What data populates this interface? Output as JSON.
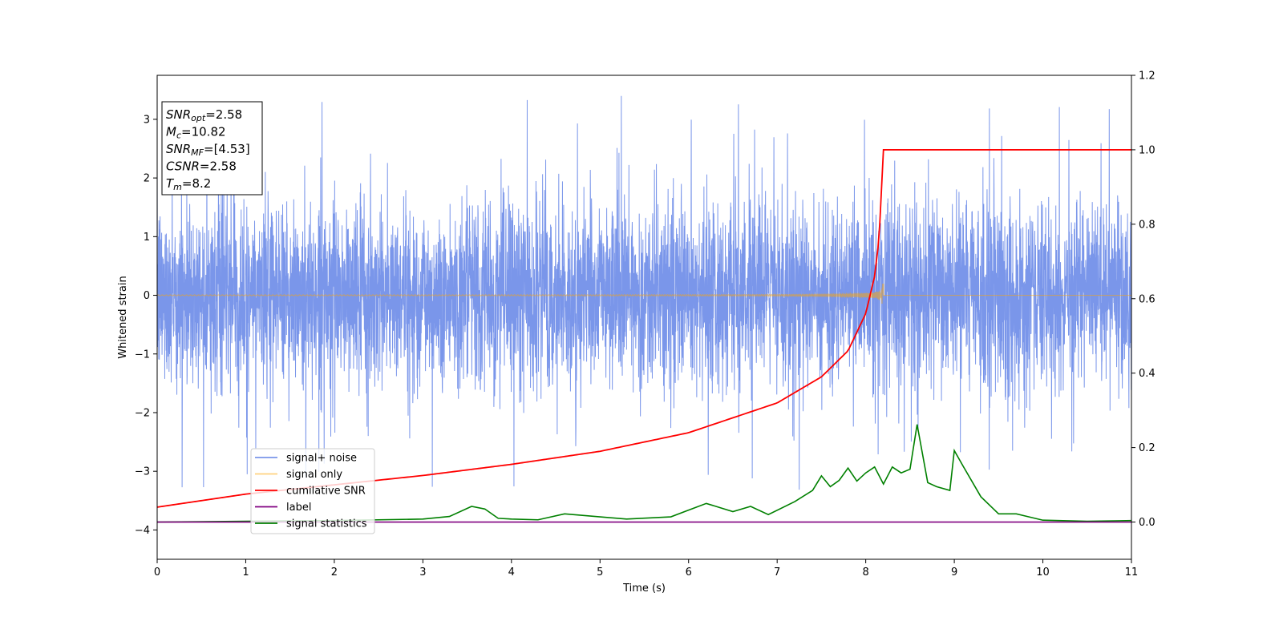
{
  "chart_data": {
    "type": "line",
    "xlabel": "Time (s)",
    "ylabel": "Whitened strain",
    "xlim": [
      0,
      11
    ],
    "ylim_left": [
      -4.5,
      3.75
    ],
    "ylim_right": [
      -0.1,
      1.2
    ],
    "x_ticks": [
      "0",
      "1",
      "2",
      "3",
      "4",
      "5",
      "6",
      "7",
      "8",
      "9",
      "10",
      "11"
    ],
    "y_ticks_left": [
      "−4",
      "−3",
      "−2",
      "−1",
      "0",
      "1",
      "2",
      "3"
    ],
    "y_ticks_right": [
      "0.0",
      "0.2",
      "0.4",
      "0.6",
      "0.8",
      "1.0",
      "1.2"
    ],
    "grid": false,
    "legend_position": "lower-left",
    "info_box": {
      "snr_opt": {
        "name": "SNR",
        "sub": "opt",
        "value": "=2.58"
      },
      "mc": {
        "name": "M",
        "sub": "c",
        "value": "=10.82"
      },
      "snr_mf": {
        "name": "SNR",
        "sub": "MF",
        "value": "=[4.53]"
      },
      "csnr": {
        "name": "CSNR",
        "sub": "",
        "value": "=2.58"
      },
      "tm": {
        "name": "T",
        "sub": "m",
        "value": "=8.2"
      }
    },
    "merger_time": 8.2,
    "duration": 11,
    "series": [
      {
        "name": "signal+ noise",
        "color": "#4169e1",
        "axis": "left",
        "style": "white-noise, amplitude ~1.2 std, spikes up to ~3.4 / -4.2"
      },
      {
        "name": "signal only",
        "color": "#ffa500",
        "axis": "left",
        "style": "chirp, amplitude rising to ~0.35 at 8.2 s"
      },
      {
        "name": "cumilative SNR",
        "color": "#ff0000",
        "axis": "right",
        "points": [
          [
            0,
            0.04
          ],
          [
            1,
            0.075
          ],
          [
            2,
            0.1
          ],
          [
            3,
            0.125
          ],
          [
            4,
            0.155
          ],
          [
            5,
            0.19
          ],
          [
            6,
            0.24
          ],
          [
            7,
            0.32
          ],
          [
            7.5,
            0.39
          ],
          [
            7.8,
            0.46
          ],
          [
            8.0,
            0.56
          ],
          [
            8.1,
            0.66
          ],
          [
            8.15,
            0.76
          ],
          [
            8.2,
            1.0
          ],
          [
            11,
            1.0
          ]
        ]
      },
      {
        "name": "label",
        "color": "#800080",
        "axis": "right",
        "points": [
          [
            0,
            0.0
          ],
          [
            11,
            0.0
          ]
        ]
      },
      {
        "name": "signal statistics",
        "color": "#008000",
        "axis": "right",
        "points": [
          [
            0,
            0.0
          ],
          [
            1,
            0.002
          ],
          [
            2,
            0.004
          ],
          [
            3,
            0.008
          ],
          [
            3.3,
            0.015
          ],
          [
            3.55,
            0.042
          ],
          [
            3.7,
            0.035
          ],
          [
            3.85,
            0.01
          ],
          [
            4.0,
            0.008
          ],
          [
            4.3,
            0.006
          ],
          [
            4.6,
            0.022
          ],
          [
            5.0,
            0.014
          ],
          [
            5.3,
            0.008
          ],
          [
            5.8,
            0.014
          ],
          [
            6.0,
            0.032
          ],
          [
            6.2,
            0.05
          ],
          [
            6.5,
            0.028
          ],
          [
            6.7,
            0.042
          ],
          [
            6.9,
            0.02
          ],
          [
            7.2,
            0.055
          ],
          [
            7.4,
            0.085
          ],
          [
            7.5,
            0.124
          ],
          [
            7.6,
            0.095
          ],
          [
            7.7,
            0.112
          ],
          [
            7.8,
            0.145
          ],
          [
            7.9,
            0.11
          ],
          [
            8.0,
            0.132
          ],
          [
            8.1,
            0.148
          ],
          [
            8.2,
            0.102
          ],
          [
            8.3,
            0.148
          ],
          [
            8.4,
            0.132
          ],
          [
            8.5,
            0.142
          ],
          [
            8.58,
            0.262
          ],
          [
            8.7,
            0.106
          ],
          [
            8.8,
            0.095
          ],
          [
            8.95,
            0.085
          ],
          [
            9.0,
            0.192
          ],
          [
            9.1,
            0.15
          ],
          [
            9.3,
            0.068
          ],
          [
            9.5,
            0.022
          ],
          [
            9.7,
            0.022
          ],
          [
            10.0,
            0.005
          ],
          [
            10.5,
            0.002
          ],
          [
            11,
            0.004
          ]
        ]
      }
    ]
  }
}
